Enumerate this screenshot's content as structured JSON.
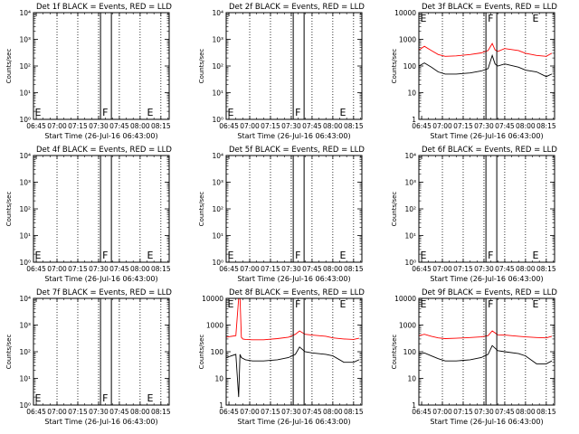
{
  "chart_data": [
    {
      "type": "line",
      "title": "Det 1f BLACK = Events, RED = LLD",
      "ylabel": "Counts/sec",
      "xlabel": "Start Time (26-Jul-16 06:43:00)",
      "yscale": "log",
      "ylim": [
        1,
        10000
      ],
      "xlim": [
        "06:43",
        "08:21"
      ],
      "ytick_labels": [
        "10⁰",
        "10¹",
        "10²",
        "10³",
        "10⁴"
      ],
      "xtick_labels": [
        "06:45",
        "07:00",
        "07:15",
        "07:30",
        "07:45",
        "08:00",
        "08:15"
      ],
      "markers": [
        {
          "label": "E",
          "time": "06:45"
        },
        {
          "label": "F",
          "time": "07:36"
        },
        {
          "label": "E",
          "time": "08:05"
        }
      ],
      "series": []
    },
    {
      "type": "line",
      "title": "Det 2f BLACK = Events, RED = LLD",
      "ylabel": "Counts/sec",
      "xlabel": "Start Time (26-Jul-16 06:43:00)",
      "yscale": "log",
      "ylim": [
        1,
        10000
      ],
      "xlim": [
        "06:43",
        "08:21"
      ],
      "ytick_labels": [
        "10⁰",
        "10¹",
        "10²",
        "10³",
        "10⁴"
      ],
      "xtick_labels": [
        "06:45",
        "07:00",
        "07:15",
        "07:30",
        "07:45",
        "08:00",
        "08:15"
      ],
      "markers": [
        {
          "label": "E",
          "time": "06:45"
        },
        {
          "label": "F",
          "time": "07:36"
        },
        {
          "label": "E",
          "time": "08:05"
        }
      ],
      "series": []
    },
    {
      "type": "line",
      "title": "Det 3f BLACK = Events, RED = LLD",
      "ylabel": "Counts/sec",
      "xlabel": "Start Time (26-Jul-16 06:43:00)",
      "yscale": "log",
      "ylim": [
        1,
        10000
      ],
      "xlim": [
        "06:43",
        "08:21"
      ],
      "ytick_labels": [
        "1",
        "10",
        "100",
        "1000",
        "10000"
      ],
      "xtick_labels": [
        "06:45",
        "07:00",
        "07:15",
        "07:30",
        "07:45",
        "08:00",
        "08:15"
      ],
      "markers": [
        {
          "label": "E",
          "time": "06:45"
        },
        {
          "label": "F",
          "time": "07:36"
        },
        {
          "label": "E",
          "time": "08:05"
        }
      ],
      "series": [
        {
          "color": "#ff0000",
          "x": [
            "06:43",
            "06:47",
            "06:52",
            "06:57",
            "07:02",
            "07:10",
            "07:20",
            "07:28",
            "07:33",
            "07:36",
            "07:38",
            "07:40",
            "07:45",
            "07:55",
            "08:00",
            "08:08",
            "08:15",
            "08:19"
          ],
          "y": [
            400,
            550,
            380,
            270,
            230,
            240,
            270,
            310,
            380,
            700,
            400,
            350,
            450,
            380,
            300,
            250,
            230,
            300
          ]
        },
        {
          "color": "#000000",
          "x": [
            "06:43",
            "06:47",
            "06:52",
            "06:57",
            "07:02",
            "07:10",
            "07:20",
            "07:28",
            "07:33",
            "07:36",
            "07:38",
            "07:40",
            "07:45",
            "07:55",
            "08:00",
            "08:08",
            "08:15",
            "08:19"
          ],
          "y": [
            100,
            130,
            90,
            60,
            50,
            50,
            55,
            65,
            80,
            250,
            120,
            100,
            120,
            90,
            70,
            60,
            40,
            50
          ]
        }
      ]
    },
    {
      "type": "line",
      "title": "Det 4f BLACK = Events, RED = LLD",
      "ylabel": "Counts/sec",
      "xlabel": "Start Time (26-Jul-16 06:43:00)",
      "yscale": "log",
      "ylim": [
        1,
        10000
      ],
      "xlim": [
        "06:43",
        "08:21"
      ],
      "ytick_labels": [
        "10⁰",
        "10¹",
        "10²",
        "10³",
        "10⁴"
      ],
      "xtick_labels": [
        "06:45",
        "07:00",
        "07:15",
        "07:30",
        "07:45",
        "08:00",
        "08:15"
      ],
      "markers": [
        {
          "label": "E",
          "time": "06:45"
        },
        {
          "label": "F",
          "time": "07:36"
        },
        {
          "label": "E",
          "time": "08:05"
        }
      ],
      "series": []
    },
    {
      "type": "line",
      "title": "Det 5f BLACK = Events, RED = LLD",
      "ylabel": "Counts/sec",
      "xlabel": "Start Time (26-Jul-16 06:43:00)",
      "yscale": "log",
      "ylim": [
        1,
        10000
      ],
      "xlim": [
        "06:43",
        "08:21"
      ],
      "ytick_labels": [
        "10⁰",
        "10¹",
        "10²",
        "10³",
        "10⁴"
      ],
      "xtick_labels": [
        "06:45",
        "07:00",
        "07:15",
        "07:30",
        "07:45",
        "08:00",
        "08:15"
      ],
      "markers": [
        {
          "label": "E",
          "time": "06:45"
        },
        {
          "label": "F",
          "time": "07:36"
        },
        {
          "label": "E",
          "time": "08:05"
        }
      ],
      "series": []
    },
    {
      "type": "line",
      "title": "Det 6f BLACK = Events, RED = LLD",
      "ylabel": "Counts/sec",
      "xlabel": "Start Time (26-Jul-16 06:43:00)",
      "yscale": "log",
      "ylim": [
        1,
        10000
      ],
      "xlim": [
        "06:43",
        "08:21"
      ],
      "ytick_labels": [
        "10⁰",
        "10¹",
        "10²",
        "10³",
        "10⁴"
      ],
      "xtick_labels": [
        "06:45",
        "07:00",
        "07:15",
        "07:30",
        "07:45",
        "08:00",
        "08:15"
      ],
      "markers": [
        {
          "label": "E",
          "time": "06:45"
        },
        {
          "label": "F",
          "time": "07:36"
        },
        {
          "label": "E",
          "time": "08:05"
        }
      ],
      "series": []
    },
    {
      "type": "line",
      "title": "Det 7f BLACK = Events, RED = LLD",
      "ylabel": "Counts/sec",
      "xlabel": "Start Time (26-Jul-16 06:43:00)",
      "yscale": "log",
      "ylim": [
        1,
        10000
      ],
      "xlim": [
        "06:43",
        "08:21"
      ],
      "ytick_labels": [
        "10⁰",
        "10¹",
        "10²",
        "10³",
        "10⁴"
      ],
      "xtick_labels": [
        "06:45",
        "07:00",
        "07:15",
        "07:30",
        "07:45",
        "08:00",
        "08:15"
      ],
      "markers": [
        {
          "label": "E",
          "time": "06:45"
        },
        {
          "label": "F",
          "time": "07:36"
        },
        {
          "label": "E",
          "time": "08:05"
        }
      ],
      "series": []
    },
    {
      "type": "line",
      "title": "Det 8f BLACK = Events, RED = LLD",
      "ylabel": "Counts/sec",
      "xlabel": "Start Time (26-Jul-16 06:43:00)",
      "yscale": "log",
      "ylim": [
        1,
        10000
      ],
      "xlim": [
        "06:43",
        "08:21"
      ],
      "ytick_labels": [
        "1",
        "10",
        "100",
        "1000",
        "10000"
      ],
      "xtick_labels": [
        "06:45",
        "07:00",
        "07:15",
        "07:30",
        "07:45",
        "08:00",
        "08:15"
      ],
      "markers": [
        {
          "label": "E",
          "time": "06:45"
        },
        {
          "label": "F",
          "time": "07:36"
        },
        {
          "label": "E",
          "time": "08:05"
        }
      ],
      "series": [
        {
          "color": "#ff0000",
          "x": [
            "06:43",
            "06:50",
            "06:52",
            "06:53",
            "06:54",
            "06:55",
            "06:57",
            "07:02",
            "07:10",
            "07:20",
            "07:28",
            "07:33",
            "07:36",
            "07:40",
            "07:45",
            "07:55",
            "08:00",
            "08:08",
            "08:15",
            "08:19"
          ],
          "y": [
            350,
            400,
            10000,
            10000,
            350,
            300,
            290,
            280,
            280,
            310,
            350,
            450,
            600,
            450,
            420,
            380,
            330,
            300,
            290,
            320
          ]
        },
        {
          "color": "#000000",
          "x": [
            "06:43",
            "06:50",
            "06:52",
            "06:53",
            "06:54",
            "06:57",
            "07:02",
            "07:10",
            "07:20",
            "07:28",
            "07:33",
            "07:36",
            "07:40",
            "07:45",
            "07:55",
            "08:00",
            "08:08",
            "08:15",
            "08:19"
          ],
          "y": [
            60,
            80,
            2,
            80,
            60,
            50,
            45,
            45,
            50,
            60,
            80,
            150,
            100,
            90,
            80,
            70,
            40,
            40,
            50
          ]
        }
      ]
    },
    {
      "type": "line",
      "title": "Det 9f BLACK = Events, RED = LLD",
      "ylabel": "Counts/sec",
      "xlabel": "Start Time (26-Jul-16 06:43:00)",
      "yscale": "log",
      "ylim": [
        1,
        10000
      ],
      "xlim": [
        "06:43",
        "08:21"
      ],
      "ytick_labels": [
        "1",
        "10",
        "100",
        "1000",
        "10000"
      ],
      "xtick_labels": [
        "06:45",
        "07:00",
        "07:15",
        "07:30",
        "07:45",
        "08:00",
        "08:15"
      ],
      "markers": [
        {
          "label": "E",
          "time": "06:45"
        },
        {
          "label": "F",
          "time": "07:36"
        },
        {
          "label": "E",
          "time": "08:05"
        }
      ],
      "series": [
        {
          "color": "#ff0000",
          "x": [
            "06:43",
            "06:47",
            "06:52",
            "06:57",
            "07:02",
            "07:10",
            "07:20",
            "07:28",
            "07:33",
            "07:36",
            "07:40",
            "07:45",
            "07:55",
            "08:00",
            "08:08",
            "08:15",
            "08:19"
          ],
          "y": [
            400,
            450,
            380,
            330,
            310,
            320,
            340,
            360,
            400,
            600,
            430,
            420,
            380,
            360,
            340,
            330,
            380
          ]
        },
        {
          "color": "#000000",
          "x": [
            "06:43",
            "06:47",
            "06:52",
            "06:57",
            "07:02",
            "07:10",
            "07:20",
            "07:28",
            "07:33",
            "07:36",
            "07:40",
            "07:45",
            "07:55",
            "08:00",
            "08:08",
            "08:15",
            "08:19"
          ],
          "y": [
            80,
            90,
            70,
            55,
            45,
            45,
            50,
            60,
            80,
            170,
            110,
            100,
            85,
            70,
            35,
            35,
            45
          ]
        }
      ]
    }
  ]
}
